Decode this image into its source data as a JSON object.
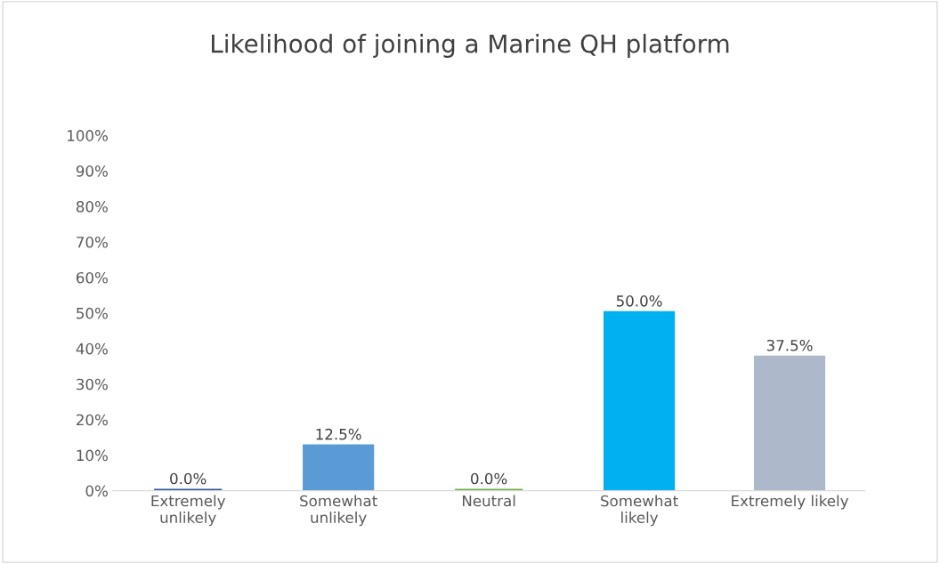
{
  "chart_data": {
    "type": "bar",
    "title": "Likelihood of joining a Marine QH platform",
    "categories": [
      "Extremely\nunlikely",
      "Somewhat\nunlikely",
      "Neutral",
      "Somewhat\nlikely",
      "Extremely likely"
    ],
    "values": [
      0,
      12.5,
      0,
      50,
      37.5
    ],
    "colors": [
      "#2f5597",
      "#5b9bd5",
      "#70ad47",
      "#00b0f0",
      "#adb9ca"
    ],
    "value_labels": [
      "0.0%",
      "12.5%",
      "0.0%",
      "50.0%",
      "37.5%"
    ],
    "ylim": [
      0,
      100
    ],
    "yticks": [
      {
        "value": 0,
        "label": "0%"
      },
      {
        "value": 10,
        "label": "10%"
      },
      {
        "value": 20,
        "label": "20%"
      },
      {
        "value": 30,
        "label": "30%"
      },
      {
        "value": 40,
        "label": "40%"
      },
      {
        "value": 50,
        "label": "50%"
      },
      {
        "value": 60,
        "label": "60%"
      },
      {
        "value": 70,
        "label": "70%"
      },
      {
        "value": 80,
        "label": "80%"
      },
      {
        "value": 90,
        "label": "90%"
      },
      {
        "value": 100,
        "label": "100%"
      }
    ],
    "grid": false,
    "legend": false
  }
}
